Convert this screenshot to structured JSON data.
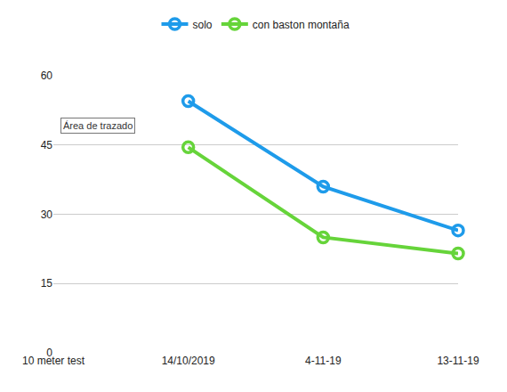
{
  "chart_data": {
    "type": "line",
    "categories": [
      "10 meter test",
      "14/10/2019",
      "4-11-19",
      "13-11-19"
    ],
    "series": [
      {
        "name": "solo",
        "color": "#1e9bea",
        "values": [
          null,
          54.5,
          36,
          26.5
        ]
      },
      {
        "name": "con baston montaña",
        "color": "#66d43a",
        "values": [
          null,
          44.5,
          25,
          21.5
        ]
      }
    ],
    "ylim": [
      0,
      60
    ],
    "yticks": [
      0,
      15,
      30,
      45,
      60
    ],
    "grid": true,
    "legend": "top",
    "marker": "circle-open",
    "annotations": [
      "Área de trazado"
    ]
  }
}
